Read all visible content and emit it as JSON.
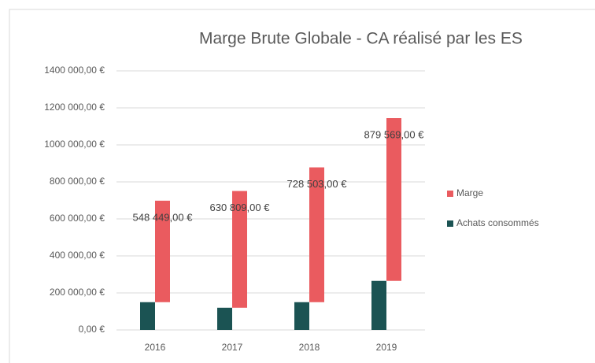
{
  "chart_data": {
    "type": "bar",
    "stacked": true,
    "title": "Marge Brute Globale - CA réalisé par les ES",
    "categories": [
      "2016",
      "2017",
      "2018",
      "2019"
    ],
    "series": [
      {
        "name": "Achats consommés",
        "color": "#1b5353",
        "values": [
          150000,
          120000,
          150000,
          265000
        ]
      },
      {
        "name": "Marge",
        "color": "#ea5b5f",
        "values": [
          548449,
          630809,
          728503,
          879569
        ],
        "value_labels": [
          "548 449,00 €",
          "630 809,00 €",
          "728 503,00 €",
          "879 569,00 €"
        ]
      }
    ],
    "ylim": [
      0,
      1400000
    ],
    "yticks": [
      {
        "value": 0,
        "label": "0,00 €"
      },
      {
        "value": 200000,
        "label": "200 000,00 €"
      },
      {
        "value": 400000,
        "label": "400 000,00 €"
      },
      {
        "value": 600000,
        "label": "600 000,00 €"
      },
      {
        "value": 800000,
        "label": "800 000,00 €"
      },
      {
        "value": 1000000,
        "label": "1000 000,00 €"
      },
      {
        "value": 1200000,
        "label": "1200 000,00 €"
      },
      {
        "value": 1400000,
        "label": "1400 000,00 €"
      }
    ],
    "grid": true,
    "legend": "right"
  }
}
